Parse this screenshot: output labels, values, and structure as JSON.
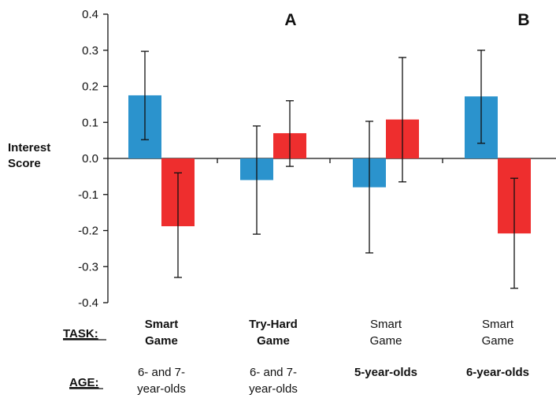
{
  "chart_data": {
    "type": "bar",
    "ylabel": [
      "Interest",
      "Score"
    ],
    "ylim": [
      -0.4,
      0.4
    ],
    "yticks": [
      "0.4",
      "0.3",
      "0.2",
      "0.1",
      "0.0",
      "-0.1",
      "-0.2",
      "-0.3",
      "-0.4"
    ],
    "panel_labels": [
      "A",
      "B"
    ],
    "row_labels": {
      "task": "TASK:",
      "age": "AGE:"
    },
    "groups": [
      {
        "task": [
          "Smart",
          "Game"
        ],
        "task_bold": true,
        "age": [
          "6- and 7-",
          "year-olds"
        ],
        "age_bold": false
      },
      {
        "task": [
          "Try-Hard",
          "Game"
        ],
        "task_bold": true,
        "age": [
          "6- and 7-",
          "year-olds"
        ],
        "age_bold": false
      },
      {
        "task": [
          "Smart",
          "Game"
        ],
        "task_bold": false,
        "age": [
          "5-year-olds"
        ],
        "age_bold": true
      },
      {
        "task": [
          "Smart",
          "Game"
        ],
        "task_bold": false,
        "age": [
          "6-year-olds"
        ],
        "age_bold": true
      }
    ],
    "series": [
      {
        "color": "#2b93cd",
        "values": [
          0.175,
          -0.06,
          -0.08,
          0.172
        ],
        "err_low": [
          0.052,
          -0.21,
          -0.262,
          0.042
        ],
        "err_high": [
          0.297,
          0.09,
          0.103,
          0.3
        ]
      },
      {
        "color": "#ee2e2e",
        "values": [
          -0.188,
          0.07,
          0.108,
          -0.208
        ],
        "err_low": [
          -0.33,
          -0.022,
          -0.065,
          -0.36
        ],
        "err_high": [
          -0.04,
          0.16,
          0.28,
          -0.055
        ]
      }
    ]
  }
}
